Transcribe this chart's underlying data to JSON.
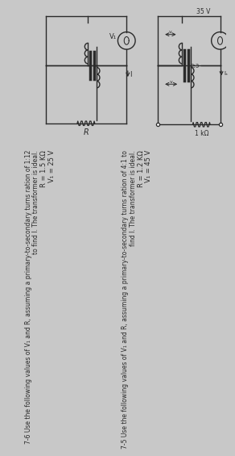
{
  "bg_color": "#c8c8c8",
  "text_color": "#2a2a2a",
  "p75_line1": "7-5 Use the following values of V₁ and R, assuming a primary-to-secondary turns ration of 4:1 to",
  "p75_line2": "find I. The transformer is ideal.",
  "p75_v1": "V₁ = 45 V",
  "p75_r": "R = 1.2 KΩ",
  "p76_line1": "7-6 Use the following values of V₁ and R, assuming a primary-to-secondary turns ration of 1:12",
  "p76_line2": "to find I. The transformer is ideal.",
  "p76_v1": "V₁ = 25 V",
  "p76_r": "R = 1.5 KΩ",
  "c1_source": "35 V",
  "c1_turns": "2:3",
  "c1_r": "1 kΩ",
  "c1_vp": "v",
  "c1_vs": "v",
  "c1_il": "Iₐ",
  "c2_v1": "V₁",
  "c2_r": "R",
  "c2_I": "I"
}
